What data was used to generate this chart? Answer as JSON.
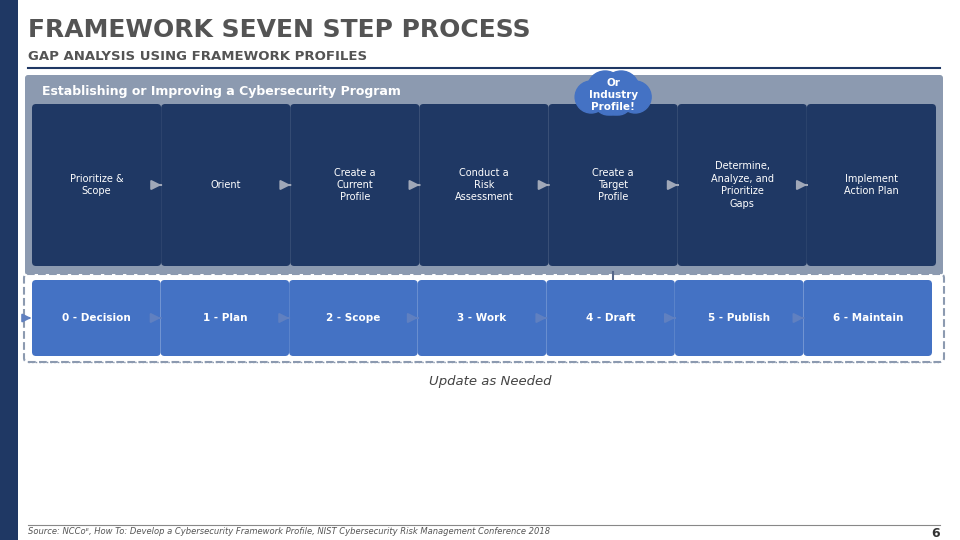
{
  "title": "FRAMEWORK SEVEN STEP PROCESS",
  "subtitle": "GAP ANALYSIS USING FRAMEWORK PROFILES",
  "bg_color": "#FFFFFF",
  "left_bar_color": "#1F3864",
  "title_color": "#545454",
  "subtitle_color": "#545454",
  "divider_color": "#1F3864",
  "upper_box_bg": "#8C9AB0",
  "upper_box_label": "Establishing or Improving a Cybersecurity Program",
  "upper_steps": [
    "Prioritize &\nScope",
    "Orient",
    "Create a\nCurrent\nProfile",
    "Conduct a\nRisk\nAssessment",
    "Create a\nTarget\nProfile",
    "Determine,\nAnalyze, and\nPrioritize\nGaps",
    "Implement\nAction Plan"
  ],
  "upper_step_color": "#1F3864",
  "upper_text_color": "#FFFFFF",
  "cloud_text": "Or\nIndustry\nProfile!",
  "cloud_color": "#4472C4",
  "lower_steps": [
    "0 - Decision",
    "1 - Plan",
    "2 - Scope",
    "3 - Work",
    "4 - Draft",
    "5 - Publish",
    "6 - Maintain"
  ],
  "lower_step_color": "#4472C4",
  "lower_text_color": "#FFFFFF",
  "update_text": "Update as Needed",
  "source_text": "Source: NCCoᴱ, How To: Develop a Cybersecurity Framework Profile, NIST Cybersecurity Risk Management Conference 2018",
  "page_num": "6",
  "arrow_color": "#A0A8B8",
  "lower_arrow_color": "#6080C0",
  "dashed_border_color": "#8C9AB0",
  "lower_box_border_color": "#8888AA"
}
